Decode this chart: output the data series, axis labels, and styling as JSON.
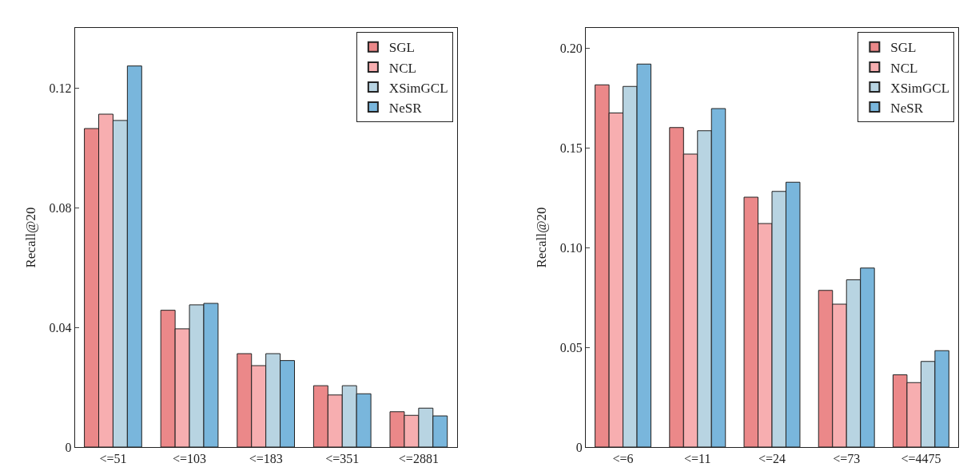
{
  "chart_data": [
    {
      "type": "bar",
      "ylabel": "Recall@20",
      "categories": [
        "<=51",
        "<=103",
        "<=183",
        "<=351",
        "<=2881"
      ],
      "ylim": [
        0,
        0.14
      ],
      "yticks": [
        0,
        0.04,
        0.08,
        0.12
      ],
      "grid": false,
      "legend": "top right",
      "series": [
        {
          "name": "SGL",
          "color": "#eb8889",
          "values": [
            0.1064,
            0.0457,
            0.0312,
            0.0205,
            0.0118
          ]
        },
        {
          "name": "NCL",
          "color": "#f7aeb0",
          "values": [
            0.1112,
            0.0395,
            0.0272,
            0.0174,
            0.0106
          ]
        },
        {
          "name": "XSimGCL",
          "color": "#b8d4e2",
          "values": [
            0.1091,
            0.0475,
            0.0312,
            0.0205,
            0.013
          ]
        },
        {
          "name": "NeSR",
          "color": "#79b6dc",
          "values": [
            0.1273,
            0.048,
            0.0289,
            0.0178,
            0.0104
          ]
        }
      ]
    },
    {
      "type": "bar",
      "ylabel": "Recall@20",
      "categories": [
        "<=6",
        "<=11",
        "<=24",
        "<=73",
        "<=4475"
      ],
      "ylim": [
        0,
        0.21
      ],
      "yticks": [
        0,
        {
          "value": 0.05,
          "label": "0.05"
        },
        {
          "value": 0.1,
          "label": "0.10"
        },
        {
          "value": 0.15,
          "label": "0.15"
        },
        {
          "value": 0.2,
          "label": "0.20"
        }
      ],
      "grid": false,
      "legend": "top right",
      "series": [
        {
          "name": "SGL",
          "color": "#eb8889",
          "values": [
            0.1815,
            0.1601,
            0.1252,
            0.0785,
            0.0362
          ]
        },
        {
          "name": "NCL",
          "color": "#f7aeb0",
          "values": [
            0.1674,
            0.1468,
            0.112,
            0.0716,
            0.0323
          ]
        },
        {
          "name": "XSimGCL",
          "color": "#b8d4e2",
          "values": [
            0.1807,
            0.1585,
            0.1281,
            0.0838,
            0.0429
          ]
        },
        {
          "name": "NeSR",
          "color": "#79b6dc",
          "values": [
            0.1919,
            0.1696,
            0.1327,
            0.0897,
            0.0483
          ]
        }
      ]
    }
  ]
}
